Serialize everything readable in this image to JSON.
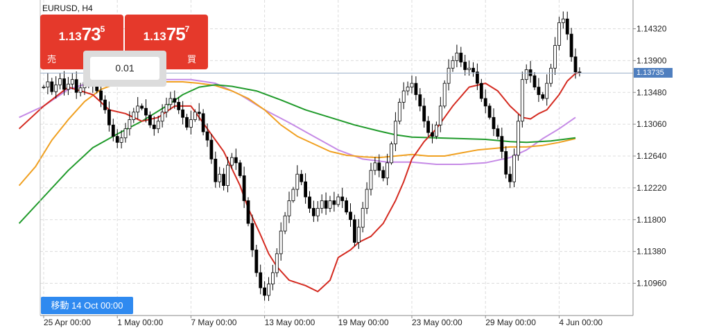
{
  "chart_title": "EURUSD, H4",
  "sell": {
    "p_small": "1.13",
    "p_big": "73",
    "p_sup": "5",
    "label": "売"
  },
  "buy": {
    "p_small": "1.13",
    "p_big": "75",
    "p_sup": "7",
    "label": "買"
  },
  "lot": "0.01",
  "current_price": "1.13735",
  "move_button": "移動 14 Oct 00:00",
  "colors": {
    "bull": "#ffffff",
    "bear": "#000000",
    "ma_red": "#d42a20",
    "ma_orange": "#f0a020",
    "ma_green": "#1f9a2a",
    "ma_violet": "#c58ae6",
    "panel_red": "#e5392b",
    "tag_blue": "#4f7fbf",
    "button_blue": "#2f8af0"
  },
  "chart_data": {
    "type": "candlestick",
    "symbol": "EURUSD",
    "timeframe": "H4",
    "grid": true,
    "y_ticks": [
      "1.14320",
      "1.13900",
      "1.13480",
      "1.13060",
      "1.12640",
      "1.12220",
      "1.11800",
      "1.11380",
      "1.10960"
    ],
    "x_ticks": [
      "25 Apr 00:00",
      "1 May 00:00",
      "7 May 00:00",
      "13 May 00:00",
      "19 May 00:00",
      "23 May 00:00",
      "29 May 00:00",
      "4 Jun 00:00"
    ],
    "ylim": [
      1.105,
      1.148
    ],
    "x_range": [
      0,
      130
    ],
    "x_tick_pos": [
      0,
      18,
      36,
      54,
      72,
      90,
      108,
      126
    ],
    "current_price": 1.13735,
    "closes": [
      1.1355,
      1.1362,
      1.1349,
      1.1358,
      1.1366,
      1.1352,
      1.1359,
      1.1365,
      1.1348,
      1.1354,
      1.1361,
      1.1357,
      1.1363,
      1.135,
      1.1338,
      1.1325,
      1.1305,
      1.129,
      1.1282,
      1.1288,
      1.13,
      1.1312,
      1.1322,
      1.133,
      1.1327,
      1.1318,
      1.1305,
      1.13,
      1.131,
      1.1322,
      1.1332,
      1.134,
      1.1335,
      1.1325,
      1.1315,
      1.1302,
      1.1312,
      1.1322,
      1.132,
      1.1296,
      1.1285,
      1.126,
      1.123,
      1.124,
      1.1225,
      1.1252,
      1.1262,
      1.1255,
      1.1238,
      1.1205,
      1.1175,
      1.114,
      1.111,
      1.109,
      1.108,
      1.1095,
      1.111,
      1.1135,
      1.1165,
      1.1185,
      1.1205,
      1.122,
      1.124,
      1.123,
      1.121,
      1.1195,
      1.1185,
      1.1195,
      1.1205,
      1.1195,
      1.1205,
      1.12,
      1.121,
      1.1205,
      1.119,
      1.118,
      1.115,
      1.117,
      1.1195,
      1.122,
      1.1245,
      1.1255,
      1.1245,
      1.1235,
      1.1255,
      1.128,
      1.131,
      1.1335,
      1.135,
      1.1355,
      1.136,
      1.1345,
      1.133,
      1.131,
      1.1295,
      1.129,
      1.1305,
      1.133,
      1.136,
      1.138,
      1.139,
      1.14,
      1.1388,
      1.1378,
      1.138,
      1.1375,
      1.136,
      1.134,
      1.133,
      1.1315,
      1.13,
      1.129,
      1.127,
      1.124,
      1.123,
      1.1265,
      1.131,
      1.1365,
      1.1378,
      1.137,
      1.1355,
      1.1345,
      1.134,
      1.136,
      1.138,
      1.141,
      1.144,
      1.1445,
      1.1425,
      1.1395,
      1.1375,
      1.1374
    ],
    "ma_red": [
      [
        -6,
        1.13
      ],
      [
        0,
        1.133
      ],
      [
        6,
        1.1355
      ],
      [
        12,
        1.1345
      ],
      [
        16,
        1.1325
      ],
      [
        20,
        1.132
      ],
      [
        24,
        1.131
      ],
      [
        28,
        1.1315
      ],
      [
        32,
        1.133
      ],
      [
        36,
        1.133
      ],
      [
        40,
        1.13
      ],
      [
        44,
        1.127
      ],
      [
        48,
        1.1225
      ],
      [
        50,
        1.1195
      ],
      [
        53,
        1.116
      ],
      [
        55,
        1.1135
      ],
      [
        57,
        1.1118
      ],
      [
        60,
        1.11
      ],
      [
        64,
        1.1093
      ],
      [
        67,
        1.1085
      ],
      [
        70,
        1.11
      ],
      [
        72,
        1.113
      ],
      [
        75,
        1.114
      ],
      [
        77,
        1.115
      ],
      [
        80,
        1.1158
      ],
      [
        83,
        1.1175
      ],
      [
        86,
        1.1205
      ],
      [
        88,
        1.123
      ],
      [
        90,
        1.126
      ],
      [
        93,
        1.1283
      ],
      [
        96,
        1.13
      ],
      [
        100,
        1.133
      ],
      [
        104,
        1.1355
      ],
      [
        108,
        1.136
      ],
      [
        111,
        1.135
      ],
      [
        114,
        1.133
      ],
      [
        117,
        1.1315
      ],
      [
        119,
        1.1313
      ],
      [
        121,
        1.132
      ],
      [
        123,
        1.1325
      ],
      [
        126,
        1.1345
      ],
      [
        128,
        1.1363
      ],
      [
        130,
        1.1373
      ],
      [
        131,
        1.1374
      ]
    ],
    "ma_orange": [
      [
        -6,
        1.1225
      ],
      [
        -2,
        1.125
      ],
      [
        2,
        1.1285
      ],
      [
        6,
        1.1312
      ],
      [
        10,
        1.1336
      ],
      [
        14,
        1.1352
      ],
      [
        18,
        1.136
      ],
      [
        22,
        1.1362
      ],
      [
        26,
        1.1362
      ],
      [
        30,
        1.1362
      ],
      [
        34,
        1.1362
      ],
      [
        38,
        1.136
      ],
      [
        42,
        1.1357
      ],
      [
        46,
        1.135
      ],
      [
        50,
        1.134
      ],
      [
        54,
        1.1325
      ],
      [
        58,
        1.1305
      ],
      [
        62,
        1.129
      ],
      [
        66,
        1.128
      ],
      [
        70,
        1.127
      ],
      [
        74,
        1.1265
      ],
      [
        78,
        1.1263
      ],
      [
        82,
        1.1262
      ],
      [
        86,
        1.1264
      ],
      [
        90,
        1.1266
      ],
      [
        94,
        1.1264
      ],
      [
        98,
        1.1264
      ],
      [
        102,
        1.1268
      ],
      [
        106,
        1.1272
      ],
      [
        110,
        1.1274
      ],
      [
        114,
        1.1276
      ],
      [
        118,
        1.1276
      ],
      [
        122,
        1.1278
      ],
      [
        126,
        1.1282
      ],
      [
        130,
        1.1287
      ]
    ],
    "ma_green": [
      [
        -6,
        1.1175
      ],
      [
        0,
        1.121
      ],
      [
        6,
        1.1245
      ],
      [
        12,
        1.1275
      ],
      [
        18,
        1.1293
      ],
      [
        24,
        1.131
      ],
      [
        30,
        1.133
      ],
      [
        34,
        1.1345
      ],
      [
        38,
        1.1355
      ],
      [
        42,
        1.1358
      ],
      [
        46,
        1.1356
      ],
      [
        52,
        1.135
      ],
      [
        58,
        1.1338
      ],
      [
        64,
        1.1325
      ],
      [
        70,
        1.1315
      ],
      [
        76,
        1.1305
      ],
      [
        82,
        1.1297
      ],
      [
        86,
        1.1292
      ],
      [
        90,
        1.1289
      ],
      [
        96,
        1.1288
      ],
      [
        102,
        1.1287
      ],
      [
        108,
        1.1286
      ],
      [
        114,
        1.1283
      ],
      [
        118,
        1.1282
      ],
      [
        124,
        1.1284
      ],
      [
        130,
        1.1288
      ]
    ],
    "ma_violet": [
      [
        -6,
        1.1315
      ],
      [
        0,
        1.133
      ],
      [
        6,
        1.1352
      ],
      [
        12,
        1.1362
      ],
      [
        18,
        1.1368
      ],
      [
        24,
        1.1367
      ],
      [
        30,
        1.1365
      ],
      [
        36,
        1.1365
      ],
      [
        42,
        1.136
      ],
      [
        48,
        1.1345
      ],
      [
        54,
        1.1325
      ],
      [
        60,
        1.1308
      ],
      [
        66,
        1.129
      ],
      [
        72,
        1.1272
      ],
      [
        78,
        1.126
      ],
      [
        84,
        1.1256
      ],
      [
        90,
        1.1256
      ],
      [
        96,
        1.1253
      ],
      [
        102,
        1.1253
      ],
      [
        108,
        1.1255
      ],
      [
        114,
        1.1262
      ],
      [
        118,
        1.1272
      ],
      [
        122,
        1.1287
      ],
      [
        126,
        1.13
      ],
      [
        130,
        1.1315
      ]
    ]
  }
}
